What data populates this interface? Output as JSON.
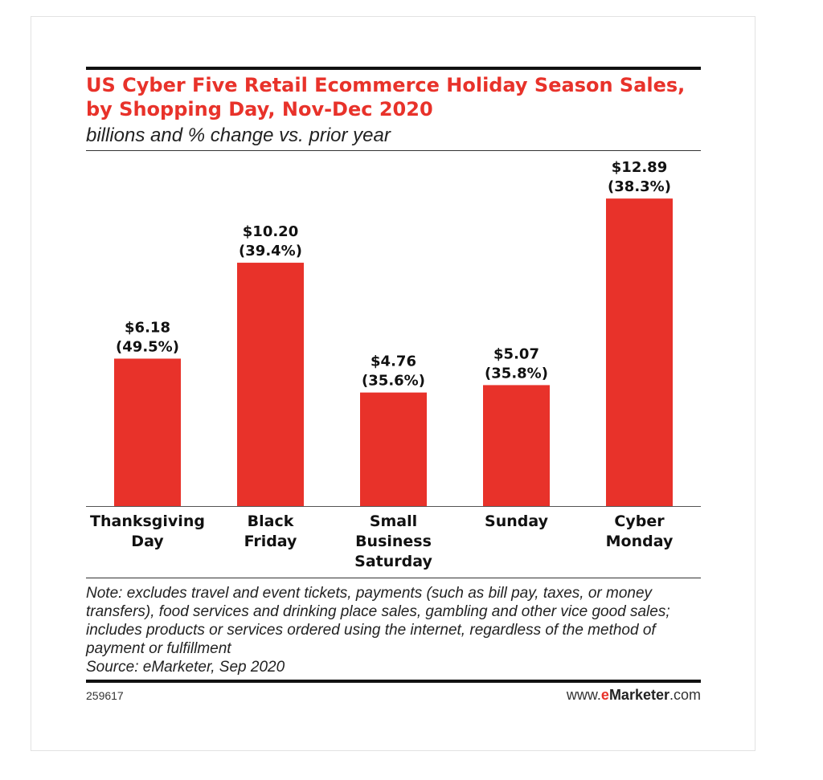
{
  "chart_data": {
    "type": "bar",
    "title": "US Cyber Five Retail Ecommerce Holiday Season Sales, by Shopping Day, Nov-Dec 2020",
    "subtitle": "billions and % change vs. prior year",
    "categories": [
      [
        "Thanksgiving",
        "Day"
      ],
      [
        "Black",
        "Friday"
      ],
      [
        "Small",
        "Business",
        "Saturday"
      ],
      [
        "Sunday"
      ],
      [
        "Cyber",
        "Monday"
      ]
    ],
    "values": [
      6.18,
      10.2,
      4.76,
      5.07,
      12.89
    ],
    "value_labels": [
      "$6.18",
      "$10.20",
      "$4.76",
      "$5.07",
      "$12.89"
    ],
    "change_labels": [
      "(49.5%)",
      "(39.4%)",
      "(35.6%)",
      "(35.8%)",
      "(38.3%)"
    ],
    "ylim": [
      0,
      13
    ],
    "grid": false,
    "legend": "none",
    "bar_color": "#e8322a"
  },
  "note": "Note: excludes travel and event tickets, payments (such as bill pay, taxes, or money transfers), food services and drinking place sales, gambling and other vice good sales; includes products or services ordered using the internet, regardless of the method of payment or fulfillment",
  "source": "Source: eMarketer, Sep 2020",
  "chart_id": "259617",
  "brand": {
    "prefix": "www.",
    "e": "e",
    "name": "Marketer",
    "suffix": ".com"
  }
}
